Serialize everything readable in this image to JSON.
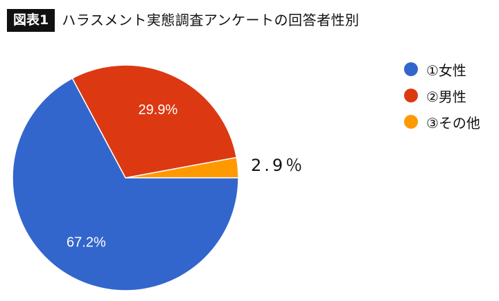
{
  "header": {
    "figure_label": "図表1",
    "title": "ハラスメント実態調査アンケートの回答者性別"
  },
  "chart_data": {
    "type": "pie",
    "title": "ハラスメント実態調査アンケートの回答者性別",
    "categories": [
      "①女性",
      "②男性",
      "③その他"
    ],
    "values": [
      67.2,
      29.9,
      2.9
    ],
    "labels": [
      "67.2%",
      "29.9%",
      "2.9％"
    ],
    "colors": [
      "#3366cc",
      "#dc3912",
      "#ff9900"
    ],
    "legend_position": "right"
  }
}
